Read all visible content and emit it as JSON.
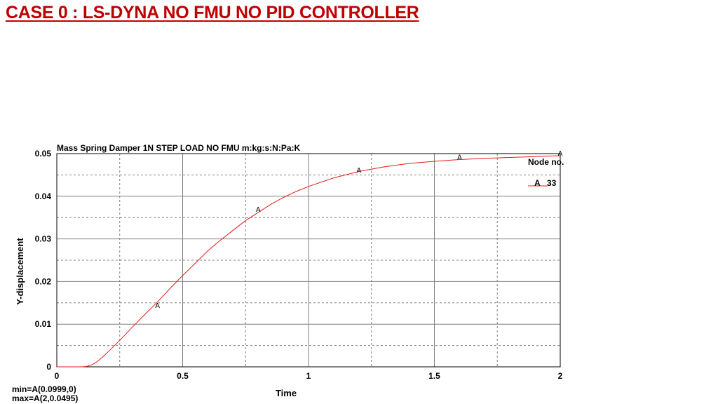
{
  "slide": {
    "title": "CASE 0 : LS-DYNA NO FMU NO PID CONTROLLER"
  },
  "colors": {
    "title": "#c00000",
    "series": "#e41a1a",
    "grid": "#7f7f7f"
  },
  "chart_data": {
    "type": "line",
    "title": "Mass Spring Damper 1N STEP LOAD NO FMU m:kg:s:N:Pa:K",
    "xlabel": "Time",
    "ylabel": "Y-displacement",
    "xlim": [
      0,
      2
    ],
    "ylim": [
      0,
      0.05
    ],
    "xticks": [
      0,
      0.5,
      1,
      1.5,
      2
    ],
    "xtick_labels": [
      "0",
      "0.5",
      "1",
      "1.5",
      "2"
    ],
    "yticks": [
      0,
      0.01,
      0.02,
      0.03,
      0.04,
      0.05
    ],
    "ytick_labels": [
      "0",
      "0.01",
      "0.02",
      "0.03",
      "0.04",
      "0.05"
    ],
    "grid": true,
    "legend": {
      "title": "Node no.",
      "position": "top-right",
      "entries": [
        {
          "marker": "A",
          "label": "33"
        }
      ]
    },
    "series": [
      {
        "name": "33",
        "marker": "A",
        "x": [
          0,
          0.1,
          0.12,
          0.14,
          0.16,
          0.18,
          0.2,
          0.25,
          0.3,
          0.35,
          0.4,
          0.45,
          0.5,
          0.55,
          0.6,
          0.65,
          0.7,
          0.75,
          0.8,
          0.85,
          0.9,
          0.95,
          1.0,
          1.1,
          1.2,
          1.3,
          1.4,
          1.5,
          1.6,
          1.7,
          1.8,
          1.9,
          2.0
        ],
        "y": [
          0,
          0,
          0.0001,
          0.0005,
          0.0012,
          0.0022,
          0.0033,
          0.0062,
          0.0093,
          0.0123,
          0.0152,
          0.0184,
          0.0214,
          0.0243,
          0.0272,
          0.0297,
          0.032,
          0.0343,
          0.0362,
          0.0381,
          0.0397,
          0.0411,
          0.0423,
          0.0443,
          0.0458,
          0.0469,
          0.0477,
          0.0482,
          0.0486,
          0.0489,
          0.0491,
          0.0493,
          0.0495
        ],
        "marker_points": [
          {
            "x": 0.4,
            "y": 0.0145
          },
          {
            "x": 0.8,
            "y": 0.037
          },
          {
            "x": 1.2,
            "y": 0.0462
          },
          {
            "x": 1.6,
            "y": 0.0493
          },
          {
            "x": 2.0,
            "y": 0.0502
          }
        ]
      }
    ],
    "annotations": {
      "min": "min=A(0.0999,0)",
      "max": "max=A(2,0.0495)"
    }
  }
}
